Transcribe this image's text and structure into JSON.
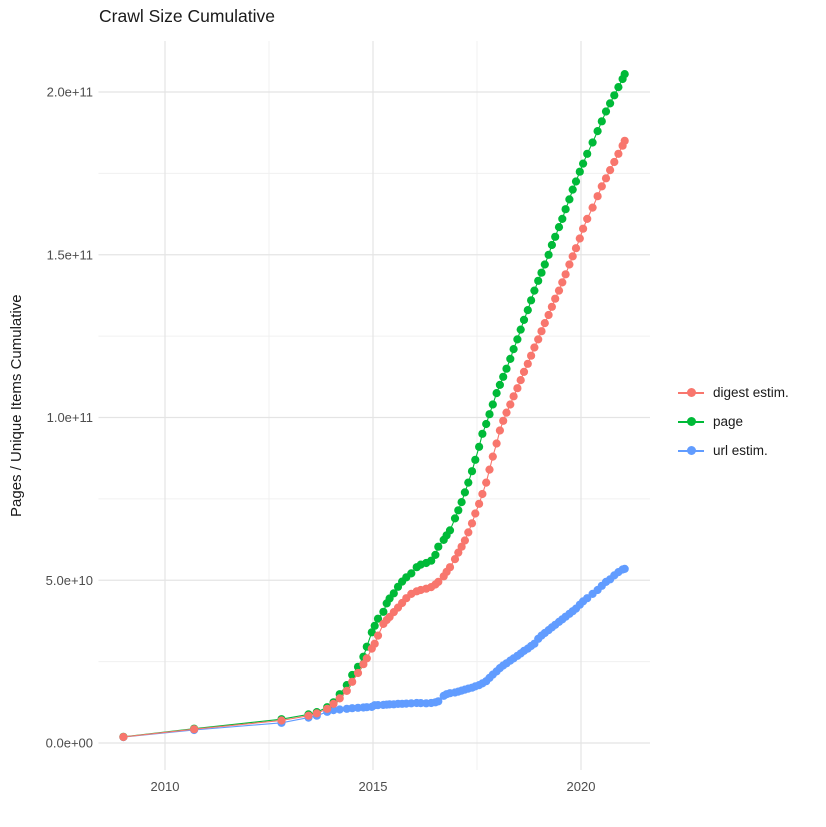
{
  "chart_data": {
    "type": "line",
    "title": "Crawl Size Cumulative",
    "xlabel": "",
    "ylabel": "Pages / Unique Items Cumulative",
    "unit": "values_e9 are in units of 1e9 (billions) of pages / unique items",
    "legend_position": "right",
    "grid": "on",
    "xlim": [
      2008.4,
      2021.66
    ],
    "ylim_e9": [
      -8,
      216
    ],
    "colors": {
      "background": "#ffffff",
      "grid_major": "#e4e4e4",
      "grid_minor": "#f0f0f0",
      "tick_text": "#4d4d4d",
      "title_text": "#1a1a1a"
    },
    "axes": {
      "x_ticks": [
        {
          "value": 2010,
          "label": "2010"
        },
        {
          "value": 2015,
          "label": "2015"
        },
        {
          "value": 2020,
          "label": "2020"
        }
      ],
      "x_minor": [
        2012.5,
        2017.5
      ],
      "y_ticks": [
        {
          "value_e9": 0,
          "label": "0.0e+00"
        },
        {
          "value_e9": 50,
          "label": "5.0e+10"
        },
        {
          "value_e9": 100,
          "label": "1.0e+11"
        },
        {
          "value_e9": 150,
          "label": "1.5e+11"
        },
        {
          "value_e9": 200,
          "label": "2.0e+11"
        }
      ],
      "y_minor_e9": [
        25,
        75,
        125,
        175
      ]
    },
    "x_shared": [
      2009.0,
      2010.7,
      2012.8,
      2013.45,
      2013.65,
      2013.9,
      2014.05,
      2014.2,
      2014.37,
      2014.5,
      2014.64,
      2014.77,
      2014.85,
      2014.97,
      2015.04,
      2015.12,
      2015.25,
      2015.33,
      2015.4,
      2015.5,
      2015.6,
      2015.7,
      2015.8,
      2015.92,
      2016.05,
      2016.15,
      2016.28,
      2016.4,
      2016.5,
      2016.57,
      2016.7,
      2016.77,
      2016.85,
      2016.97,
      2017.05,
      2017.13,
      2017.21,
      2017.29,
      2017.38,
      2017.46,
      2017.55,
      2017.63,
      2017.72,
      2017.8,
      2017.88,
      2017.97,
      2018.05,
      2018.13,
      2018.21,
      2018.3,
      2018.38,
      2018.47,
      2018.55,
      2018.63,
      2018.72,
      2018.8,
      2018.88,
      2018.97,
      2019.05,
      2019.13,
      2019.22,
      2019.3,
      2019.38,
      2019.47,
      2019.55,
      2019.63,
      2019.72,
      2019.8,
      2019.88,
      2019.97,
      2020.05,
      2020.15,
      2020.28,
      2020.4,
      2020.5,
      2020.6,
      2020.7,
      2020.8,
      2020.9,
      2021.0,
      2021.05
    ],
    "series": [
      {
        "id": "digest",
        "name": "digest estim.",
        "color": "#F8766D",
        "values_e9": [
          1.85,
          4.25,
          6.9,
          8.4,
          9.1,
          10.5,
          12.0,
          13.7,
          16.0,
          18.8,
          21.5,
          24.2,
          26.0,
          29.0,
          30.5,
          33.0,
          36.6,
          37.8,
          38.7,
          40.2,
          41.6,
          43.0,
          44.5,
          45.8,
          46.6,
          47.0,
          47.4,
          47.9,
          48.7,
          49.5,
          51.2,
          52.6,
          54.0,
          56.5,
          58.5,
          60.3,
          62.2,
          64.7,
          67.5,
          70.5,
          73.5,
          76.5,
          80.0,
          84.0,
          88.0,
          92.0,
          96.0,
          99.0,
          101.5,
          104.0,
          106.5,
          109.0,
          111.5,
          114.0,
          116.5,
          119.0,
          121.5,
          124.0,
          126.5,
          129.0,
          131.5,
          134.0,
          136.5,
          139.0,
          141.5,
          144.0,
          147.0,
          149.5,
          152.0,
          155.0,
          158.0,
          161.0,
          164.5,
          168.0,
          171.0,
          173.5,
          176.0,
          178.5,
          181.0,
          183.5,
          185.0
        ]
      },
      {
        "id": "page",
        "name": "page",
        "color": "#00BA38",
        "values_e9": [
          1.9,
          4.4,
          7.3,
          8.8,
          9.5,
          11.0,
          12.5,
          15.0,
          17.8,
          20.9,
          23.4,
          26.5,
          29.6,
          34.0,
          36.0,
          38.2,
          40.3,
          42.9,
          44.4,
          46.0,
          48.0,
          49.6,
          50.9,
          52.1,
          54.0,
          54.8,
          55.3,
          56.0,
          57.8,
          60.3,
          62.4,
          63.8,
          65.3,
          69.0,
          71.5,
          74.0,
          77.0,
          80.0,
          83.5,
          87.0,
          91.0,
          95.0,
          98.0,
          101.0,
          104.0,
          107.5,
          110.0,
          112.5,
          115.0,
          118.0,
          121.0,
          124.0,
          127.0,
          130.0,
          133.0,
          136.0,
          139.0,
          142.0,
          144.5,
          147.0,
          150.0,
          153.0,
          155.5,
          158.5,
          161.0,
          164.0,
          167.0,
          170.0,
          172.5,
          175.5,
          178.0,
          181.0,
          184.5,
          188.0,
          191.0,
          194.0,
          196.5,
          199.0,
          201.5,
          204.0,
          205.5
        ]
      },
      {
        "id": "url",
        "name": "url estim.",
        "color": "#619CFF",
        "values_e9": [
          1.8,
          4.0,
          6.2,
          7.8,
          8.4,
          9.6,
          10.1,
          10.3,
          10.5,
          10.7,
          10.8,
          10.9,
          11.0,
          11.1,
          11.6,
          11.65,
          11.7,
          11.8,
          11.85,
          11.9,
          12.0,
          12.05,
          12.1,
          12.2,
          12.3,
          12.25,
          12.2,
          12.3,
          12.5,
          12.8,
          14.5,
          15.0,
          15.3,
          15.5,
          15.8,
          16.1,
          16.4,
          16.7,
          17.0,
          17.4,
          17.8,
          18.3,
          19.0,
          20.0,
          21.0,
          22.0,
          23.0,
          23.8,
          24.5,
          25.3,
          26.0,
          26.8,
          27.5,
          28.3,
          29.0,
          29.8,
          30.5,
          32.0,
          33.0,
          33.8,
          34.7,
          35.5,
          36.3,
          37.2,
          38.0,
          38.8,
          39.7,
          40.5,
          41.3,
          42.5,
          43.5,
          44.5,
          45.8,
          47.0,
          48.3,
          49.5,
          50.3,
          51.5,
          52.5,
          53.3,
          53.5
        ]
      }
    ]
  }
}
